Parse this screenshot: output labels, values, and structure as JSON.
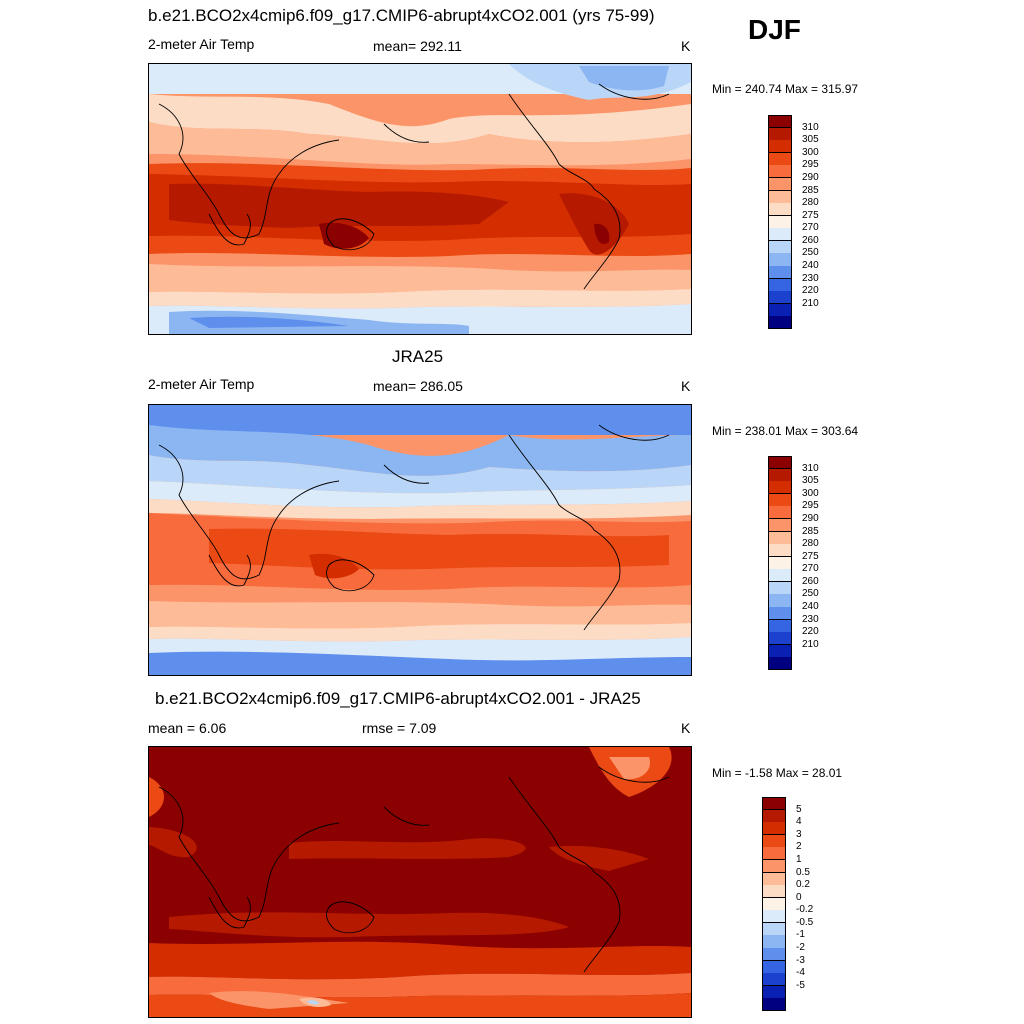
{
  "season": "DJF",
  "panels": [
    {
      "id": "model",
      "title": "b.e21.BCO2x4cmip6.f09_g17.CMIP6-abrupt4xCO2.001 (yrs 75-99)",
      "left_label": "2-meter Air Temp",
      "center_label": "mean= 292.11",
      "units": "K",
      "minmax": "Min = 240.74 Max = 315.97"
    },
    {
      "id": "obs",
      "title": "JRA25",
      "left_label": "2-meter Air Temp",
      "center_label": "mean= 286.05",
      "units": "K",
      "minmax": "Min = 238.01 Max = 303.64"
    },
    {
      "id": "diff",
      "title": "b.e21.BCO2x4cmip6.f09_g17.CMIP6-abrupt4xCO2.001 - JRA25",
      "left_label": "mean =   6.06",
      "center_label": "rmse =   7.09",
      "units": "K",
      "minmax": "Min =  -1.58 Max =  28.01"
    }
  ],
  "colorbars": {
    "temp": {
      "levels": [
        "310",
        "305",
        "300",
        "295",
        "290",
        "285",
        "280",
        "275",
        "270",
        "260",
        "250",
        "240",
        "230",
        "220",
        "210"
      ],
      "colors": [
        "#8b0000",
        "#b51a00",
        "#d42d00",
        "#ec4a14",
        "#f86b3c",
        "#fb9468",
        "#fdbb98",
        "#fddcc6",
        "#fdf2e6",
        "#dcebfa",
        "#b9d5f7",
        "#8cb6f2",
        "#5f8fed",
        "#3565e3",
        "#1c41cf",
        "#0a20b2",
        "#000080"
      ]
    },
    "diff": {
      "levels": [
        "5",
        "4",
        "3",
        "2",
        "1",
        "0.5",
        "0.2",
        "0",
        "-0.2",
        "-0.5",
        "-1",
        "-2",
        "-3",
        "-4",
        "-5"
      ],
      "colors": [
        "#8b0000",
        "#b51a00",
        "#d42d00",
        "#ec4a14",
        "#f86b3c",
        "#fb9468",
        "#fdbb98",
        "#fddcc6",
        "#fdf2e6",
        "#dcebfa",
        "#b9d5f7",
        "#8cb6f2",
        "#5f8fed",
        "#3565e3",
        "#1c41cf",
        "#0a20b2",
        "#000080"
      ]
    }
  },
  "chart_data": [
    {
      "type": "heatmap",
      "title": "b.e21.BCO2x4cmip6.f09_g17.CMIP6-abrupt4xCO2.001 (yrs 75-99)",
      "variable": "2-meter Air Temp",
      "units": "K",
      "mean": 292.11,
      "min": 240.74,
      "max": 315.97,
      "contour_levels": [
        210,
        220,
        230,
        240,
        250,
        260,
        270,
        275,
        280,
        285,
        290,
        295,
        300,
        305,
        310
      ]
    },
    {
      "type": "heatmap",
      "title": "JRA25",
      "variable": "2-meter Air Temp",
      "units": "K",
      "mean": 286.05,
      "min": 238.01,
      "max": 303.64,
      "contour_levels": [
        210,
        220,
        230,
        240,
        250,
        260,
        270,
        275,
        280,
        285,
        290,
        295,
        300,
        305,
        310
      ]
    },
    {
      "type": "heatmap",
      "title": "b.e21.BCO2x4cmip6.f09_g17.CMIP6-abrupt4xCO2.001 - JRA25",
      "units": "K",
      "mean": 6.06,
      "rmse": 7.09,
      "min": -1.58,
      "max": 28.01,
      "contour_levels": [
        -5,
        -4,
        -3,
        -2,
        -1,
        -0.5,
        -0.2,
        0,
        0.2,
        0.5,
        1,
        2,
        3,
        4,
        5
      ]
    }
  ]
}
